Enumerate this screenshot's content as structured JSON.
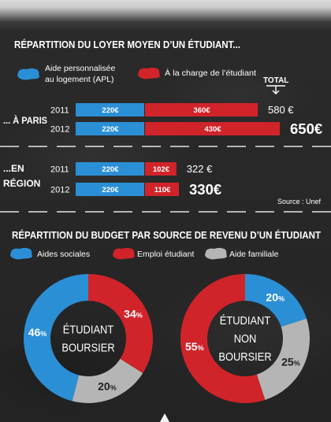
{
  "chart_data": [
    {
      "type": "bar",
      "orientation": "horizontal",
      "stacked": true,
      "title": "RÉPARTITION DU LOYER MOYEN D’UN ÉTUDIANT...",
      "unit": "€",
      "legend": [
        {
          "label_lines": [
            "Aide personnalisée",
            "au logement (APL)"
          ],
          "color": "#2b8fd6"
        },
        {
          "label_lines": [
            "À la charge de l’étudiant"
          ],
          "color": "#d1232a"
        }
      ],
      "total_header": "TOTAL",
      "groups": [
        {
          "label_lines": [
            "... À PARIS"
          ],
          "rows": [
            {
              "year": "2011",
              "values": [
                220,
                360
              ],
              "total": "580 €"
            },
            {
              "year": "2012",
              "values": [
                220,
                430
              ],
              "total": "650€"
            }
          ]
        },
        {
          "label_lines": [
            "...EN",
            "RÉGION"
          ],
          "rows": [
            {
              "year": "2011",
              "values": [
                220,
                102
              ],
              "total": "322 €"
            },
            {
              "year": "2012",
              "values": [
                220,
                110
              ],
              "total": "330€"
            }
          ]
        }
      ],
      "source": "Source : Unef"
    },
    {
      "type": "pie",
      "donut": true,
      "title": "RÉPARTITION DU BUDGET PAR SOURCE DE REVENU D’UN ÉTUDIANT",
      "unit": "%",
      "legend": [
        {
          "label": "Aides sociales",
          "color": "#2b8fd6"
        },
        {
          "label": "Emploi étudiant",
          "color": "#d1232a"
        },
        {
          "label": "Aide familiale",
          "color": "#b5b5b5"
        }
      ],
      "charts": [
        {
          "center_lines": [
            "ÉTUDIANT",
            "BOURSIER"
          ],
          "slices": [
            {
              "value": 34,
              "color": "#d1232a"
            },
            {
              "value": 20,
              "color": "#b5b5b5"
            },
            {
              "value": 46,
              "color": "#2b8fd6"
            }
          ]
        },
        {
          "center_lines": [
            "ÉTUDIANT",
            "NON",
            "BOURSIER"
          ],
          "slices": [
            {
              "value": 20,
              "color": "#2b8fd6"
            },
            {
              "value": 25,
              "color": "#b5b5b5"
            },
            {
              "value": 55,
              "color": "#d1232a"
            }
          ]
        }
      ]
    }
  ]
}
